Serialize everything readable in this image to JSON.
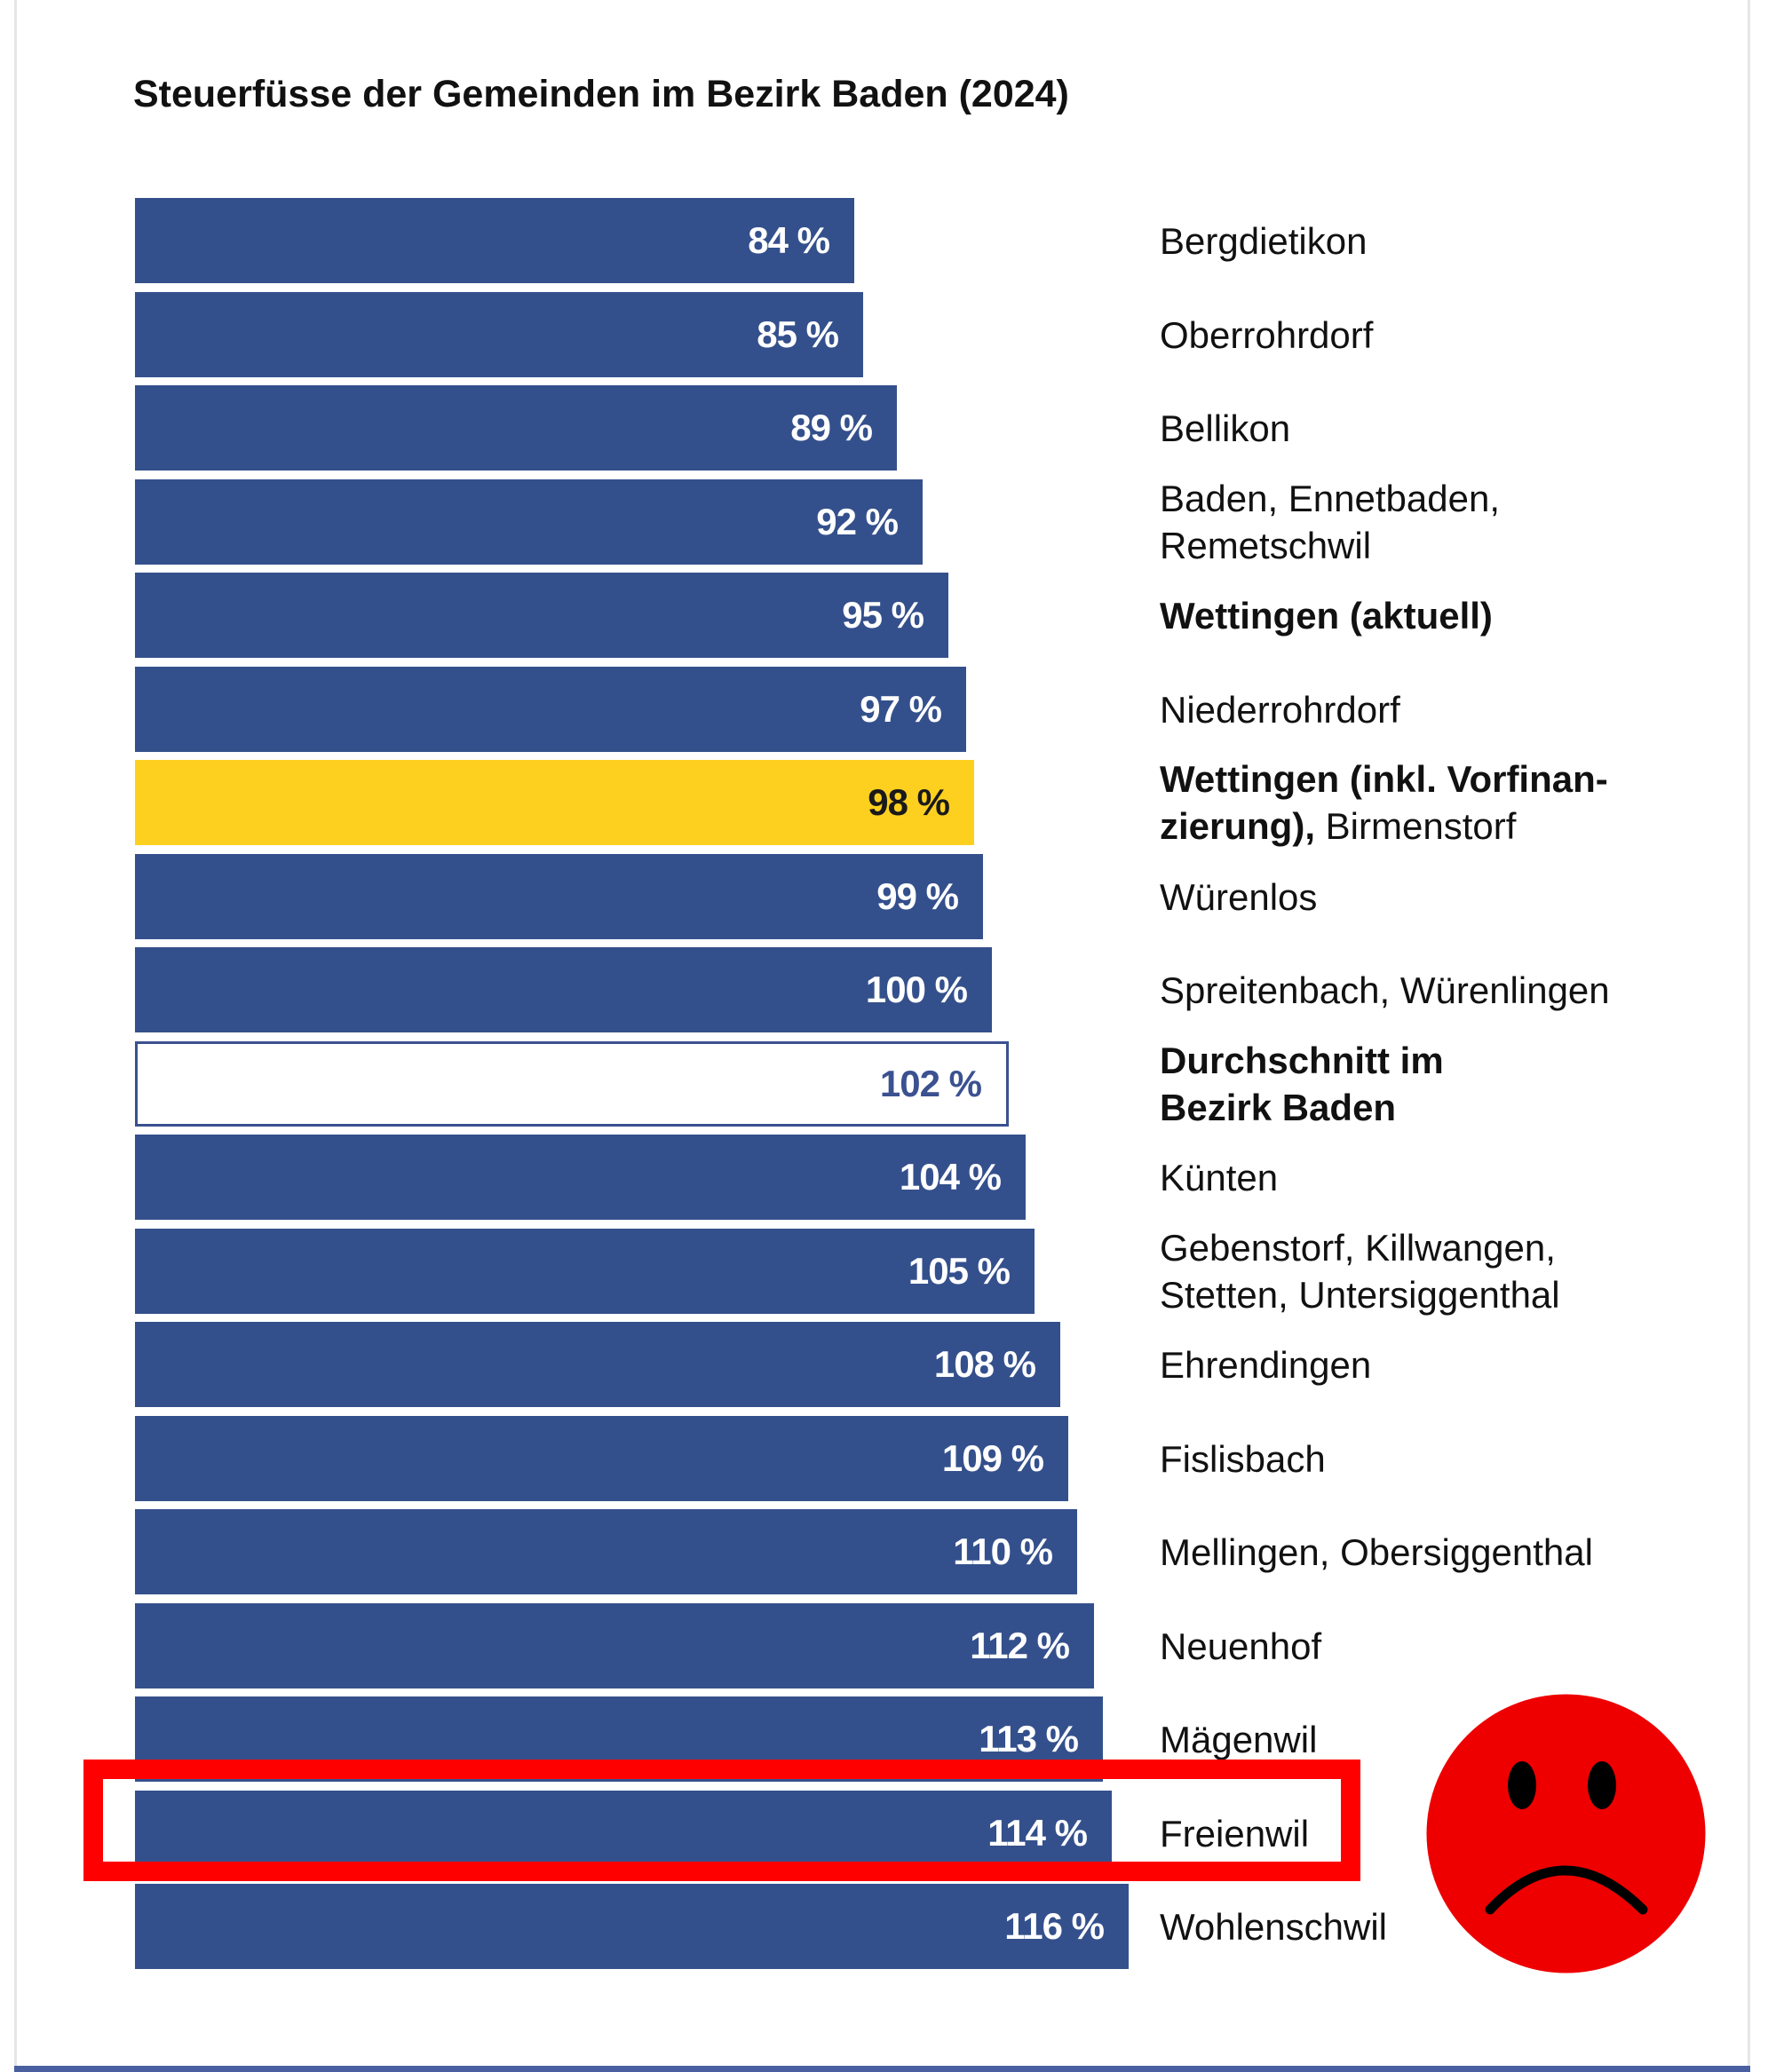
{
  "chart_data": {
    "type": "bar",
    "orientation": "horizontal",
    "title": "Steuerfüsse der Gemeinden im Bezirk Baden (2024)",
    "unit": "%",
    "colors": {
      "bar": "#34508c",
      "highlight": "#fdd020",
      "outline": "#3b5190",
      "annotation": "#ff0000"
    },
    "bars": [
      {
        "value": 84,
        "value_label": "84 %",
        "label_lines": [
          [
            {
              "t": "Bergdietikon",
              "b": false
            }
          ]
        ],
        "style": "normal"
      },
      {
        "value": 85,
        "value_label": "85 %",
        "label_lines": [
          [
            {
              "t": "Oberrohrdorf",
              "b": false
            }
          ]
        ],
        "style": "normal"
      },
      {
        "value": 89,
        "value_label": "89 %",
        "label_lines": [
          [
            {
              "t": "Bellikon",
              "b": false
            }
          ]
        ],
        "style": "normal"
      },
      {
        "value": 92,
        "value_label": "92 %",
        "label_lines": [
          [
            {
              "t": "Baden, Ennetbaden,",
              "b": false
            }
          ],
          [
            {
              "t": "Remetschwil",
              "b": false
            }
          ]
        ],
        "style": "normal"
      },
      {
        "value": 95,
        "value_label": "95 %",
        "label_lines": [
          [
            {
              "t": "Wettingen (aktuell)",
              "b": true
            }
          ]
        ],
        "style": "normal"
      },
      {
        "value": 97,
        "value_label": "97 %",
        "label_lines": [
          [
            {
              "t": "Niederrohrdorf",
              "b": false
            }
          ]
        ],
        "style": "normal"
      },
      {
        "value": 98,
        "value_label": "98 %",
        "label_lines": [
          [
            {
              "t": "Wettingen (inkl. Vorfinan-",
              "b": true
            }
          ],
          [
            {
              "t": "zierung),",
              "b": true
            },
            {
              "t": " Birmenstorf",
              "b": false
            }
          ]
        ],
        "style": "highlight"
      },
      {
        "value": 99,
        "value_label": "99 %",
        "label_lines": [
          [
            {
              "t": "Würenlos",
              "b": false
            }
          ]
        ],
        "style": "normal"
      },
      {
        "value": 100,
        "value_label": "100 %",
        "label_lines": [
          [
            {
              "t": "Spreitenbach, Würenlingen",
              "b": false
            }
          ]
        ],
        "style": "normal"
      },
      {
        "value": 102,
        "value_label": "102 %",
        "label_lines": [
          [
            {
              "t": "Durchschnitt im",
              "b": true
            }
          ],
          [
            {
              "t": "Bezirk Baden",
              "b": true
            }
          ]
        ],
        "style": "outline"
      },
      {
        "value": 104,
        "value_label": "104 %",
        "label_lines": [
          [
            {
              "t": "Künten",
              "b": false
            }
          ]
        ],
        "style": "normal"
      },
      {
        "value": 105,
        "value_label": "105 %",
        "label_lines": [
          [
            {
              "t": "Gebenstorf, Killwangen,",
              "b": false
            }
          ],
          [
            {
              "t": "Stetten, Untersiggenthal",
              "b": false
            }
          ]
        ],
        "style": "normal"
      },
      {
        "value": 108,
        "value_label": "108 %",
        "label_lines": [
          [
            {
              "t": "Ehrendingen",
              "b": false
            }
          ]
        ],
        "style": "normal"
      },
      {
        "value": 109,
        "value_label": "109 %",
        "label_lines": [
          [
            {
              "t": "Fislisbach",
              "b": false
            }
          ]
        ],
        "style": "normal"
      },
      {
        "value": 110,
        "value_label": "110 %",
        "label_lines": [
          [
            {
              "t": "Mellingen, Obersiggenthal",
              "b": false
            }
          ]
        ],
        "style": "normal"
      },
      {
        "value": 112,
        "value_label": "112 %",
        "label_lines": [
          [
            {
              "t": "Neuenhof",
              "b": false
            }
          ]
        ],
        "style": "normal"
      },
      {
        "value": 113,
        "value_label": "113 %",
        "label_lines": [
          [
            {
              "t": "Mägenwil",
              "b": false
            }
          ]
        ],
        "style": "normal"
      },
      {
        "value": 114,
        "value_label": "114 %",
        "label_lines": [
          [
            {
              "t": "Freienwil",
              "b": false
            }
          ]
        ],
        "style": "normal",
        "annotated": true
      },
      {
        "value": 116,
        "value_label": "116 %",
        "label_lines": [
          [
            {
              "t": "Wohlenschwil",
              "b": false
            }
          ]
        ],
        "style": "normal"
      }
    ],
    "annotations": [
      "red-rectangle-around-Freienwil",
      "sad-face-icon"
    ]
  }
}
